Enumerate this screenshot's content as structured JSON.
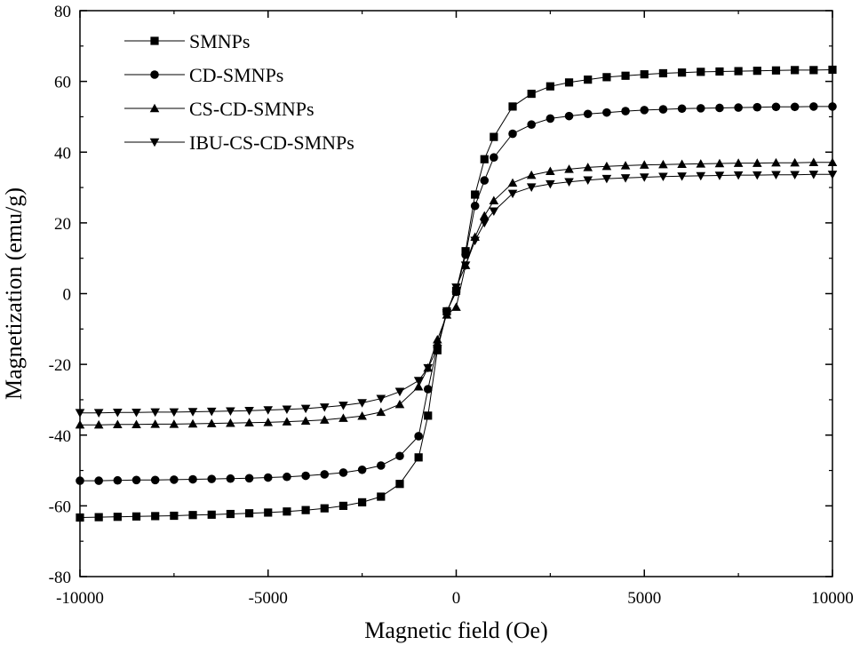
{
  "chart_data": {
    "type": "line",
    "title": "",
    "xlabel": "Magnetic field (Oe)",
    "ylabel": "Magnetization (emu/g)",
    "xlim": [
      -10000,
      10000
    ],
    "ylim": [
      -80,
      80
    ],
    "xticks": [
      -10000,
      -5000,
      0,
      5000,
      10000
    ],
    "xtick_labels": [
      "-10000",
      "-5000",
      "0",
      "5000",
      "10000"
    ],
    "yticks": [
      80,
      60,
      40,
      20,
      0,
      -20,
      -40,
      -60,
      -80
    ],
    "ytick_labels": [
      "80",
      "60",
      "40",
      "20",
      "0",
      "-20",
      "-40",
      "-60",
      "-80"
    ],
    "grid": false,
    "legend_position": "top-left",
    "x": [
      -10000,
      -9500,
      -9000,
      -8500,
      -8000,
      -7500,
      -7000,
      -6500,
      -6000,
      -5500,
      -5000,
      -4500,
      -4000,
      -3500,
      -3000,
      -2500,
      -2000,
      -1500,
      -1000,
      -750,
      -500,
      -250,
      0,
      250,
      500,
      750,
      1000,
      1500,
      2000,
      2500,
      3000,
      3500,
      4000,
      4500,
      5000,
      5500,
      6000,
      6500,
      7000,
      7500,
      8000,
      8500,
      9000,
      9500,
      10000
    ],
    "series": [
      {
        "name": "SMNPs",
        "marker": "square",
        "values": [
          -63.3,
          -63.2,
          -63.1,
          -63.0,
          -62.9,
          -62.8,
          -62.6,
          -62.5,
          -62.3,
          -62.1,
          -61.9,
          -61.6,
          -61.2,
          -60.7,
          -60.0,
          -59.0,
          -57.4,
          -53.8,
          -46.3,
          -34.5,
          -16.0,
          -5.0,
          0.8,
          12.0,
          28.0,
          38.0,
          44.3,
          52.9,
          56.5,
          58.6,
          59.7,
          60.5,
          61.2,
          61.6,
          62.0,
          62.3,
          62.5,
          62.7,
          62.8,
          62.9,
          63.0,
          63.1,
          63.2,
          63.2,
          63.3
        ]
      },
      {
        "name": "CD-SMNPs",
        "marker": "circle",
        "values": [
          -52.9,
          -52.9,
          -52.8,
          -52.7,
          -52.7,
          -52.6,
          -52.5,
          -52.4,
          -52.3,
          -52.2,
          -52.0,
          -51.8,
          -51.5,
          -51.1,
          -50.6,
          -49.8,
          -48.6,
          -45.9,
          -40.3,
          -27.0,
          -15.0,
          -5.0,
          0.5,
          11.0,
          24.8,
          32.0,
          38.5,
          45.2,
          47.8,
          49.5,
          50.2,
          50.8,
          51.2,
          51.6,
          51.9,
          52.1,
          52.3,
          52.4,
          52.5,
          52.6,
          52.7,
          52.8,
          52.8,
          52.9,
          52.9
        ]
      },
      {
        "name": "CS-CD-SMNPs",
        "marker": "triangle-up",
        "values": [
          -37.1,
          -37.1,
          -37.0,
          -37.0,
          -36.9,
          -36.9,
          -36.8,
          -36.7,
          -36.6,
          -36.5,
          -36.4,
          -36.2,
          -36.0,
          -35.7,
          -35.2,
          -34.6,
          -33.5,
          -31.3,
          -26.3,
          -21.0,
          -13.0,
          -6.0,
          -3.8,
          8.0,
          16.0,
          22.0,
          26.3,
          31.3,
          33.5,
          34.6,
          35.2,
          35.7,
          36.0,
          36.2,
          36.4,
          36.5,
          36.6,
          36.7,
          36.8,
          36.9,
          36.9,
          37.0,
          37.0,
          37.1,
          37.1
        ]
      },
      {
        "name": "IBU-CS-CD-SMNPs",
        "marker": "triangle-down",
        "values": [
          -33.7,
          -33.7,
          -33.6,
          -33.6,
          -33.5,
          -33.5,
          -33.4,
          -33.3,
          -33.2,
          -33.1,
          -32.9,
          -32.7,
          -32.5,
          -32.1,
          -31.6,
          -30.9,
          -29.7,
          -27.7,
          -24.6,
          -21.0,
          -15.5,
          -5.5,
          1.8,
          8.0,
          15.0,
          20.0,
          23.3,
          28.3,
          30.1,
          31.0,
          31.6,
          32.1,
          32.5,
          32.7,
          32.9,
          33.1,
          33.2,
          33.3,
          33.4,
          33.5,
          33.5,
          33.6,
          33.6,
          33.7,
          33.7
        ]
      }
    ]
  }
}
